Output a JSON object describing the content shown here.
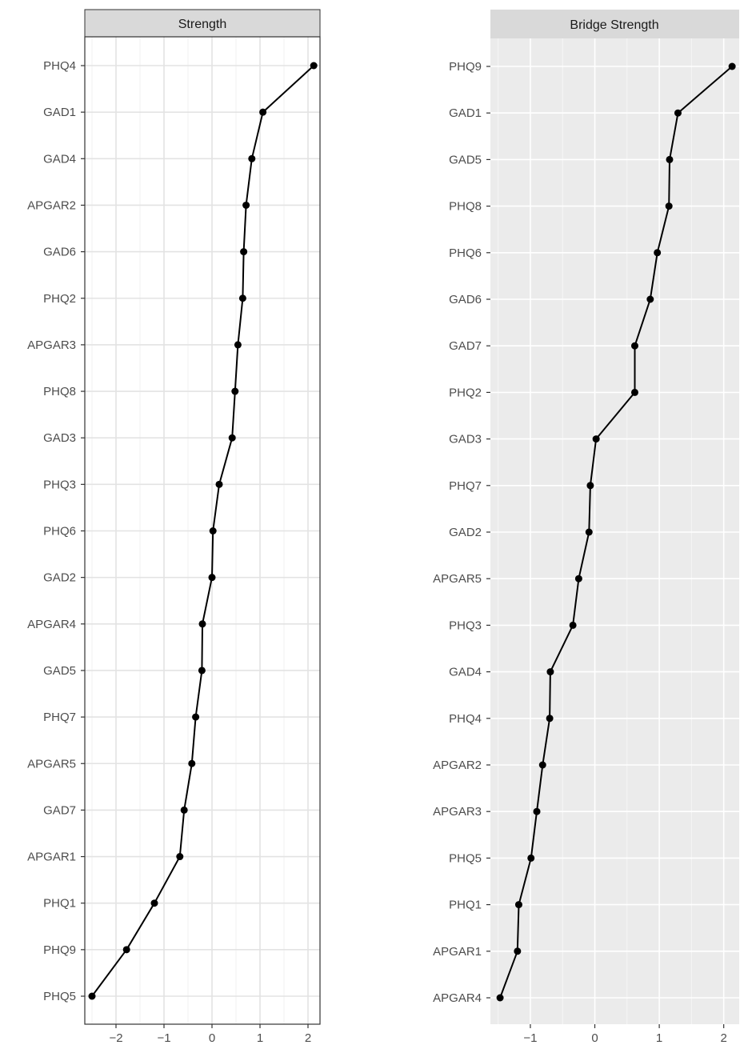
{
  "chart_data": [
    {
      "type": "line",
      "title": "Strength",
      "xlabel": "",
      "ylabel": "",
      "xlim": [
        -2.65,
        2.25
      ],
      "x_ticks": [
        -2,
        -1,
        0,
        1,
        2
      ],
      "x_tick_labels": [
        "−2",
        "−1",
        "0",
        "1",
        "2"
      ],
      "background": "white",
      "grid": true,
      "point_color": "#000000",
      "line_color": "#000000",
      "categories": [
        "PHQ4",
        "GAD1",
        "GAD4",
        "APGAR2",
        "GAD6",
        "PHQ2",
        "APGAR3",
        "PHQ8",
        "GAD3",
        "PHQ3",
        "PHQ6",
        "GAD2",
        "APGAR4",
        "GAD5",
        "PHQ7",
        "APGAR5",
        "GAD7",
        "APGAR1",
        "PHQ1",
        "PHQ9",
        "PHQ5"
      ],
      "values": [
        2.12,
        1.06,
        0.83,
        0.71,
        0.66,
        0.64,
        0.54,
        0.48,
        0.42,
        0.15,
        0.02,
        0.0,
        -0.2,
        -0.21,
        -0.34,
        -0.42,
        -0.58,
        -0.67,
        -1.2,
        -1.78,
        -2.5
      ]
    },
    {
      "type": "line",
      "title": "Bridge Strength",
      "xlabel": "",
      "ylabel": "",
      "xlim": [
        -1.62,
        2.24
      ],
      "x_ticks": [
        -1,
        0,
        1,
        2
      ],
      "x_tick_labels": [
        "−1",
        "0",
        "1",
        "2"
      ],
      "background": "grey",
      "grid": true,
      "point_color": "#000000",
      "line_color": "#000000",
      "categories": [
        "PHQ9",
        "GAD1",
        "GAD5",
        "PHQ8",
        "PHQ6",
        "GAD6",
        "GAD7",
        "PHQ2",
        "GAD3",
        "PHQ7",
        "GAD2",
        "APGAR5",
        "PHQ3",
        "GAD4",
        "PHQ4",
        "APGAR2",
        "APGAR3",
        "PHQ5",
        "PHQ1",
        "APGAR1",
        "APGAR4"
      ],
      "values": [
        2.13,
        1.29,
        1.16,
        1.15,
        0.97,
        0.86,
        0.62,
        0.62,
        0.02,
        -0.07,
        -0.09,
        -0.25,
        -0.34,
        -0.69,
        -0.7,
        -0.81,
        -0.9,
        -0.99,
        -1.18,
        -1.2,
        -1.47
      ]
    }
  ]
}
